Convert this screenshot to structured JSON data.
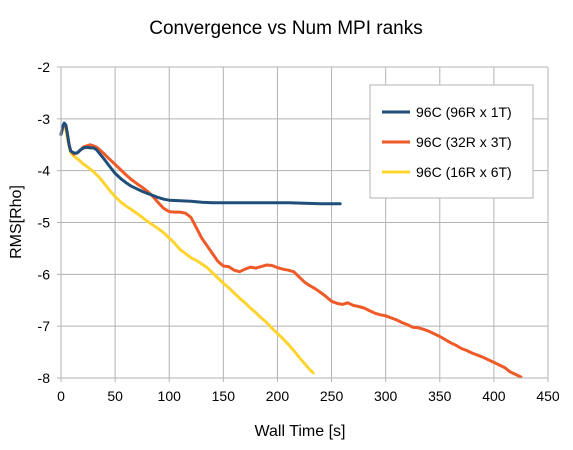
{
  "chart_data": {
    "type": "line",
    "title": "Convergence vs Num MPI ranks",
    "xlabel": "Wall Time [s]",
    "ylabel": "RMS[Rho]",
    "xlim": [
      0,
      450
    ],
    "ylim": [
      -8,
      -2
    ],
    "x_ticks": [
      0,
      50,
      100,
      150,
      200,
      250,
      300,
      350,
      400,
      450
    ],
    "y_ticks": [
      -2,
      -3,
      -4,
      -5,
      -6,
      -7,
      -8
    ],
    "grid": true,
    "legend_position": "top-right",
    "series": [
      {
        "name": "96C (96R x 1T)",
        "color": "#1f4e79",
        "points": [
          [
            0,
            -3.3
          ],
          [
            1.5,
            -3.15
          ],
          [
            3,
            -3.08
          ],
          [
            4.5,
            -3.12
          ],
          [
            6,
            -3.3
          ],
          [
            7.5,
            -3.5
          ],
          [
            9,
            -3.62
          ],
          [
            12,
            -3.66
          ],
          [
            15,
            -3.66
          ],
          [
            18,
            -3.6
          ],
          [
            21,
            -3.56
          ],
          [
            24,
            -3.55
          ],
          [
            27,
            -3.56
          ],
          [
            30,
            -3.56
          ],
          [
            33,
            -3.6
          ],
          [
            36,
            -3.68
          ],
          [
            40,
            -3.78
          ],
          [
            45,
            -3.92
          ],
          [
            50,
            -4.05
          ],
          [
            55,
            -4.15
          ],
          [
            60,
            -4.23
          ],
          [
            65,
            -4.3
          ],
          [
            70,
            -4.35
          ],
          [
            75,
            -4.4
          ],
          [
            80,
            -4.44
          ],
          [
            85,
            -4.48
          ],
          [
            90,
            -4.52
          ],
          [
            95,
            -4.55
          ],
          [
            100,
            -4.57
          ],
          [
            110,
            -4.58
          ],
          [
            120,
            -4.59
          ],
          [
            130,
            -4.61
          ],
          [
            140,
            -4.62
          ],
          [
            150,
            -4.62
          ],
          [
            170,
            -4.62
          ],
          [
            190,
            -4.62
          ],
          [
            210,
            -4.62
          ],
          [
            225,
            -4.63
          ],
          [
            240,
            -4.64
          ],
          [
            258,
            -4.64
          ]
        ]
      },
      {
        "name": "96C (32R x 3T)",
        "color": "#f05a28",
        "points": [
          [
            0,
            -3.3
          ],
          [
            1.5,
            -3.18
          ],
          [
            3,
            -3.1
          ],
          [
            4.5,
            -3.14
          ],
          [
            6,
            -3.3
          ],
          [
            7.5,
            -3.5
          ],
          [
            9,
            -3.62
          ],
          [
            12,
            -3.68
          ],
          [
            15,
            -3.66
          ],
          [
            18,
            -3.6
          ],
          [
            21,
            -3.54
          ],
          [
            24,
            -3.52
          ],
          [
            27,
            -3.5
          ],
          [
            30,
            -3.52
          ],
          [
            33,
            -3.55
          ],
          [
            36,
            -3.6
          ],
          [
            40,
            -3.68
          ],
          [
            45,
            -3.78
          ],
          [
            50,
            -3.88
          ],
          [
            55,
            -3.98
          ],
          [
            60,
            -4.08
          ],
          [
            65,
            -4.17
          ],
          [
            70,
            -4.25
          ],
          [
            75,
            -4.32
          ],
          [
            80,
            -4.4
          ],
          [
            85,
            -4.5
          ],
          [
            90,
            -4.62
          ],
          [
            95,
            -4.73
          ],
          [
            100,
            -4.79
          ],
          [
            105,
            -4.8
          ],
          [
            110,
            -4.8
          ],
          [
            115,
            -4.82
          ],
          [
            120,
            -4.9
          ],
          [
            125,
            -5.1
          ],
          [
            130,
            -5.3
          ],
          [
            135,
            -5.45
          ],
          [
            140,
            -5.6
          ],
          [
            145,
            -5.75
          ],
          [
            150,
            -5.84
          ],
          [
            155,
            -5.85
          ],
          [
            160,
            -5.92
          ],
          [
            165,
            -5.95
          ],
          [
            170,
            -5.9
          ],
          [
            175,
            -5.86
          ],
          [
            180,
            -5.88
          ],
          [
            185,
            -5.85
          ],
          [
            190,
            -5.82
          ],
          [
            195,
            -5.83
          ],
          [
            200,
            -5.87
          ],
          [
            205,
            -5.9
          ],
          [
            210,
            -5.92
          ],
          [
            215,
            -5.95
          ],
          [
            220,
            -6.05
          ],
          [
            225,
            -6.15
          ],
          [
            230,
            -6.22
          ],
          [
            235,
            -6.28
          ],
          [
            240,
            -6.35
          ],
          [
            245,
            -6.43
          ],
          [
            250,
            -6.52
          ],
          [
            255,
            -6.56
          ],
          [
            260,
            -6.58
          ],
          [
            265,
            -6.55
          ],
          [
            270,
            -6.6
          ],
          [
            275,
            -6.62
          ],
          [
            280,
            -6.65
          ],
          [
            285,
            -6.7
          ],
          [
            290,
            -6.75
          ],
          [
            295,
            -6.78
          ],
          [
            300,
            -6.8
          ],
          [
            305,
            -6.84
          ],
          [
            310,
            -6.88
          ],
          [
            315,
            -6.93
          ],
          [
            320,
            -6.97
          ],
          [
            325,
            -7.02
          ],
          [
            330,
            -7.03
          ],
          [
            335,
            -7.06
          ],
          [
            340,
            -7.1
          ],
          [
            345,
            -7.15
          ],
          [
            350,
            -7.2
          ],
          [
            355,
            -7.26
          ],
          [
            360,
            -7.32
          ],
          [
            365,
            -7.37
          ],
          [
            370,
            -7.43
          ],
          [
            375,
            -7.47
          ],
          [
            380,
            -7.52
          ],
          [
            385,
            -7.56
          ],
          [
            390,
            -7.6
          ],
          [
            395,
            -7.65
          ],
          [
            400,
            -7.7
          ],
          [
            405,
            -7.75
          ],
          [
            410,
            -7.8
          ],
          [
            415,
            -7.88
          ],
          [
            420,
            -7.93
          ],
          [
            425,
            -7.98
          ]
        ]
      },
      {
        "name": "96C (16R x 6T)",
        "color": "#ffd42f",
        "points": [
          [
            0,
            -3.3
          ],
          [
            1.5,
            -3.2
          ],
          [
            3,
            -3.14
          ],
          [
            4.5,
            -3.2
          ],
          [
            6,
            -3.38
          ],
          [
            7.5,
            -3.52
          ],
          [
            9,
            -3.65
          ],
          [
            12,
            -3.72
          ],
          [
            15,
            -3.77
          ],
          [
            18,
            -3.82
          ],
          [
            21,
            -3.88
          ],
          [
            24,
            -3.92
          ],
          [
            27,
            -3.97
          ],
          [
            30,
            -4.02
          ],
          [
            35,
            -4.12
          ],
          [
            40,
            -4.25
          ],
          [
            45,
            -4.38
          ],
          [
            50,
            -4.5
          ],
          [
            55,
            -4.6
          ],
          [
            60,
            -4.68
          ],
          [
            65,
            -4.75
          ],
          [
            70,
            -4.82
          ],
          [
            75,
            -4.9
          ],
          [
            80,
            -4.98
          ],
          [
            85,
            -5.05
          ],
          [
            90,
            -5.12
          ],
          [
            95,
            -5.2
          ],
          [
            100,
            -5.3
          ],
          [
            105,
            -5.4
          ],
          [
            110,
            -5.52
          ],
          [
            115,
            -5.6
          ],
          [
            120,
            -5.68
          ],
          [
            125,
            -5.73
          ],
          [
            130,
            -5.8
          ],
          [
            135,
            -5.87
          ],
          [
            140,
            -5.97
          ],
          [
            145,
            -6.07
          ],
          [
            150,
            -6.17
          ],
          [
            155,
            -6.26
          ],
          [
            160,
            -6.36
          ],
          [
            165,
            -6.46
          ],
          [
            170,
            -6.55
          ],
          [
            175,
            -6.65
          ],
          [
            180,
            -6.74
          ],
          [
            185,
            -6.84
          ],
          [
            190,
            -6.93
          ],
          [
            195,
            -7.04
          ],
          [
            200,
            -7.14
          ],
          [
            205,
            -7.24
          ],
          [
            210,
            -7.35
          ],
          [
            215,
            -7.47
          ],
          [
            220,
            -7.6
          ],
          [
            225,
            -7.72
          ],
          [
            230,
            -7.84
          ],
          [
            233,
            -7.9
          ]
        ]
      }
    ]
  }
}
